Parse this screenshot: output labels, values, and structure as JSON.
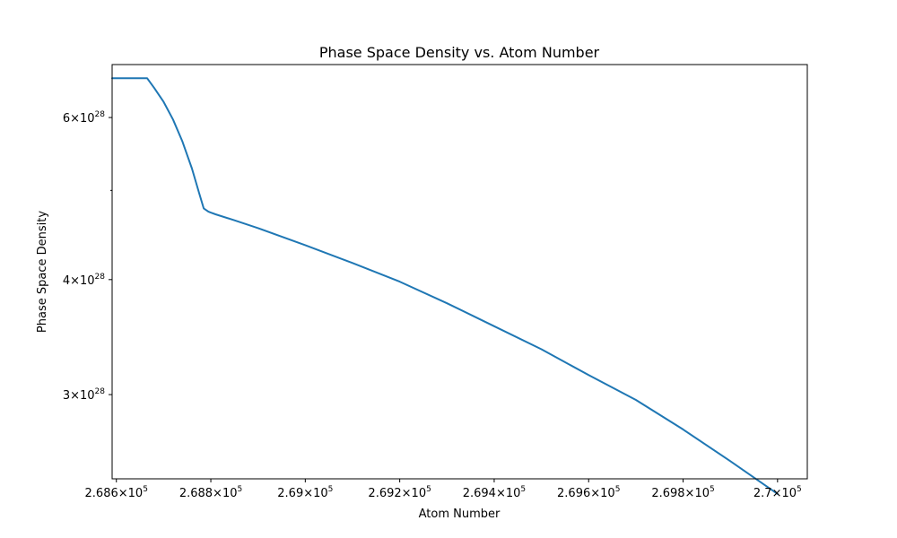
{
  "chart_data": {
    "type": "line",
    "title": "Phase Space Density vs. Atom Number",
    "xlabel": "Atom Number",
    "ylabel": "Phase Space Density",
    "xscale": "linear",
    "yscale": "log",
    "xlim": [
      268591,
      270063
    ],
    "ylim": [
      2.43e+28,
      6.85e+28
    ],
    "grid": false,
    "line_color": "#1f77b4",
    "x_ticks": [
      {
        "value": 268600,
        "mantissa": "2.686",
        "base": "10",
        "exp": "5"
      },
      {
        "value": 268800,
        "mantissa": "2.688",
        "base": "10",
        "exp": "5"
      },
      {
        "value": 269000,
        "mantissa": "2.69",
        "base": "10",
        "exp": "5"
      },
      {
        "value": 269200,
        "mantissa": "2.692",
        "base": "10",
        "exp": "5"
      },
      {
        "value": 269400,
        "mantissa": "2.694",
        "base": "10",
        "exp": "5"
      },
      {
        "value": 269600,
        "mantissa": "2.696",
        "base": "10",
        "exp": "5"
      },
      {
        "value": 269800,
        "mantissa": "2.698",
        "base": "10",
        "exp": "5"
      },
      {
        "value": 270000,
        "mantissa": "2.7",
        "base": "10",
        "exp": "5"
      }
    ],
    "y_ticks": [
      {
        "value": 3e+28,
        "mantissa": "3",
        "base": "10",
        "exp": "28"
      },
      {
        "value": 4e+28,
        "mantissa": "4",
        "base": "10",
        "exp": "28"
      },
      {
        "value": 6e+28,
        "mantissa": "6",
        "base": "10",
        "exp": "28"
      }
    ],
    "y_minor_ticks": [
      5e+28
    ],
    "series": [
      {
        "x": [
          268591,
          268665,
          268680,
          268700,
          268720,
          268740,
          268760,
          268775,
          268785,
          268795,
          268800,
          268810,
          268850,
          268900,
          269000,
          269100,
          269200,
          269300,
          269400,
          269500,
          269600,
          269700,
          269800,
          269900,
          270000
        ],
        "y": [
          6.62e+28,
          6.62e+28,
          6.46e+28,
          6.24e+28,
          5.97e+28,
          5.65e+28,
          5.28e+28,
          4.97e+28,
          4.78e+28,
          4.74e+28,
          4.73e+28,
          4.71e+28,
          4.64e+28,
          4.55e+28,
          4.36e+28,
          4.17e+28,
          3.98e+28,
          3.77e+28,
          3.56e+28,
          3.36e+28,
          3.15e+28,
          2.96e+28,
          2.75e+28,
          2.54e+28,
          2.34e+28
        ]
      }
    ]
  }
}
